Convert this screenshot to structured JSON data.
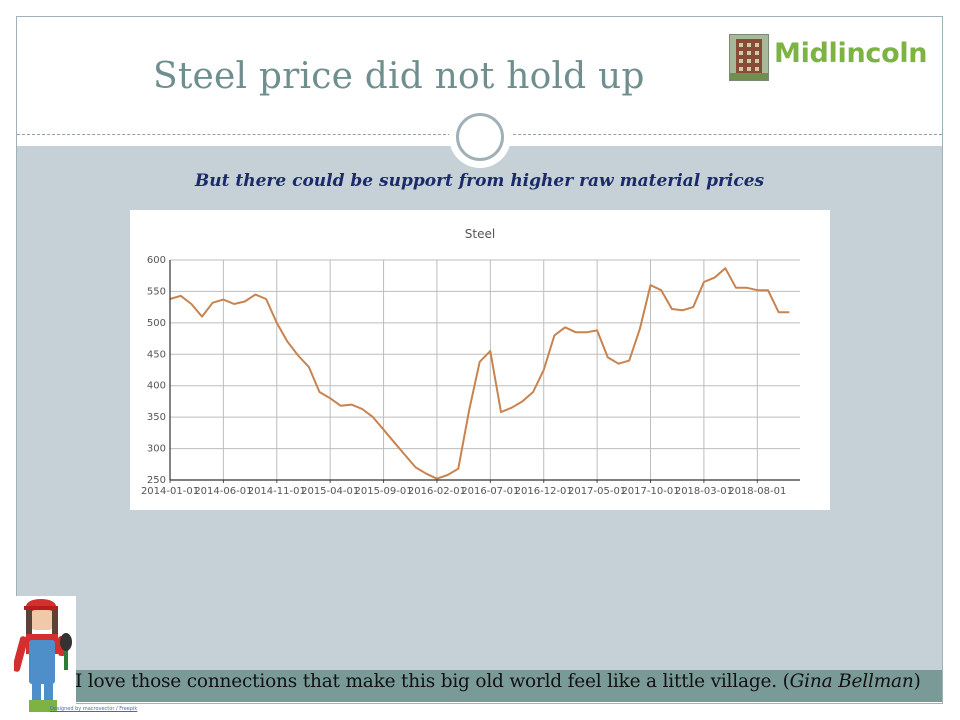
{
  "slide": {
    "title": "Steel price did not hold up",
    "subtitle": "But there could be support from higher raw material prices",
    "logo_text": "Midlincoln",
    "quote_text": "I love those connections that make this big old world feel like a little village. (",
    "quote_author": "Gina Bellman",
    "quote_close": ")",
    "credit": "Designed by macrovector / Freepik"
  },
  "chart_data": {
    "type": "line",
    "title": "Steel",
    "xlabel": "",
    "ylabel": "",
    "ylim": [
      250,
      600
    ],
    "yticks": [
      250,
      300,
      350,
      400,
      450,
      500,
      550,
      600
    ],
    "grid": true,
    "legend": "none",
    "x_tick_labels": [
      "2014-01-01",
      "2014-06-01",
      "2014-11-01",
      "2015-04-01",
      "2015-09-01",
      "2016-02-01",
      "2016-07-01",
      "2016-12-01",
      "2017-05-01",
      "2017-10-01",
      "2018-03-01",
      "2018-08-01"
    ],
    "x": [
      "2014-01",
      "2014-02",
      "2014-03",
      "2014-04",
      "2014-05",
      "2014-06",
      "2014-07",
      "2014-08",
      "2014-09",
      "2014-10",
      "2014-11",
      "2014-12",
      "2015-01",
      "2015-02",
      "2015-03",
      "2015-04",
      "2015-05",
      "2015-06",
      "2015-07",
      "2015-08",
      "2015-09",
      "2015-10",
      "2015-11",
      "2015-12",
      "2016-01",
      "2016-02",
      "2016-03",
      "2016-04",
      "2016-05",
      "2016-06",
      "2016-07",
      "2016-08",
      "2016-09",
      "2016-10",
      "2016-11",
      "2016-12",
      "2017-01",
      "2017-02",
      "2017-03",
      "2017-04",
      "2017-05",
      "2017-06",
      "2017-07",
      "2017-08",
      "2017-09",
      "2017-10",
      "2017-11",
      "2017-12",
      "2018-01",
      "2018-02",
      "2018-03",
      "2018-04",
      "2018-05",
      "2018-06",
      "2018-07",
      "2018-08",
      "2018-09",
      "2018-10",
      "2018-11"
    ],
    "series": [
      {
        "name": "",
        "color": "#c8834f",
        "values": [
          538,
          543,
          530,
          510,
          532,
          537,
          530,
          534,
          545,
          538,
          500,
          470,
          448,
          430,
          390,
          380,
          368,
          370,
          363,
          350,
          330,
          310,
          290,
          270,
          260,
          252,
          258,
          268,
          360,
          438,
          455,
          358,
          365,
          375,
          390,
          425,
          480,
          493,
          485,
          485,
          488,
          445,
          435,
          440,
          490,
          560,
          552,
          522,
          520,
          525,
          565,
          572,
          587,
          556,
          556,
          552,
          552,
          517,
          517
        ]
      }
    ]
  }
}
